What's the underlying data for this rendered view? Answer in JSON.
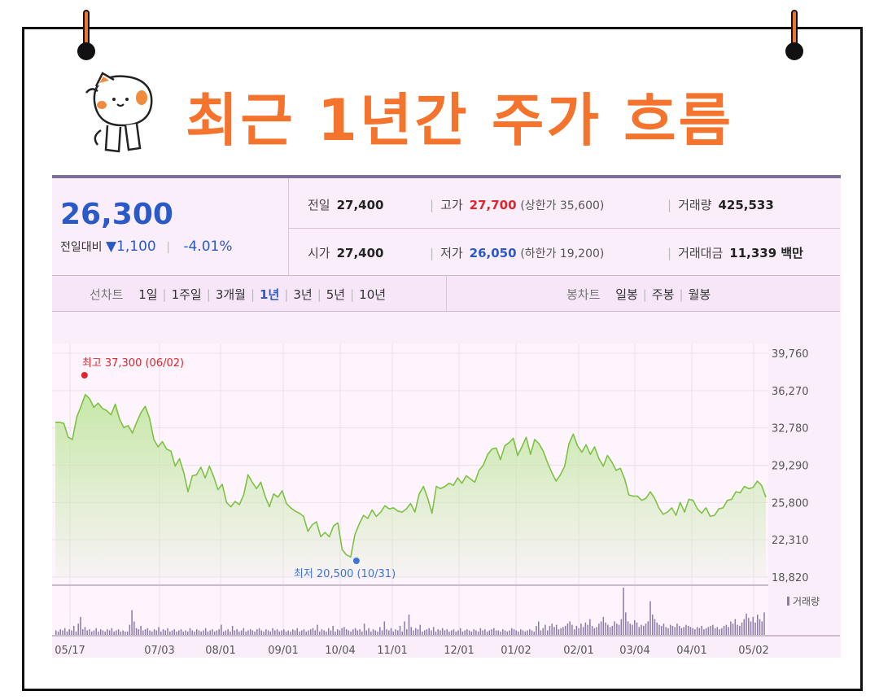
{
  "page": {
    "title": "최근 1년간 주가 흐름"
  },
  "quote": {
    "price": "26,300",
    "change_label": "전일대비",
    "change_value": "▼1,100",
    "change_pct": "-4.01%",
    "prev_close_label": "전일",
    "prev_close": "27,400",
    "open_label": "시가",
    "open": "27,400",
    "high_label": "고가",
    "high": "27,700",
    "upper_limit": "(상한가 35,600)",
    "low_label": "저가",
    "low": "26,050",
    "lower_limit": "(하한가 19,200)",
    "volume_label": "거래량",
    "volume": "425,533",
    "amount_label": "거래대금",
    "amount": "11,339 백만"
  },
  "tabs": {
    "line_label": "선차트",
    "line_tabs": [
      "1일",
      "1주일",
      "3개월",
      "1년",
      "3년",
      "5년",
      "10년"
    ],
    "active": "1년",
    "candle_label": "봉차트",
    "candle_tabs": [
      "일봉",
      "주봉",
      "월봉"
    ]
  },
  "colors": {
    "line": "#7dc243",
    "fill": "#c7e8a8",
    "high_marker": "#e0262b",
    "low_marker": "#3f74d6",
    "title": "#f4732d",
    "price_blue": "#2a59c8"
  },
  "chart_data": {
    "type": "area",
    "x_ticks": [
      "05/17",
      "07/03",
      "08/01",
      "09/01",
      "10/04",
      "11/01",
      "12/01",
      "01/02",
      "02/01",
      "03/04",
      "04/01",
      "05/02"
    ],
    "y_ticks": [
      "39,760",
      "36,270",
      "32,780",
      "29,290",
      "25,800",
      "22,310",
      "18,820"
    ],
    "ylim": [
      18820,
      39760
    ],
    "annotations": {
      "high": "최고 37,300 (06/02)",
      "low": "최저 20,500 (10/31)"
    },
    "volume_legend": "거래량",
    "series": [
      {
        "values": [
          33300,
          33300,
          33200,
          31900,
          31700,
          33800,
          34800,
          35900,
          35500,
          34700,
          35100,
          34600,
          34400,
          34000,
          35000,
          33600,
          32800,
          33000,
          32300,
          33300,
          34200,
          34800,
          33700,
          31700,
          31000,
          31500,
          30800,
          30600,
          29200,
          29900,
          28600,
          26800,
          28300,
          28400,
          29100,
          28100,
          29200,
          28200,
          27000,
          27500,
          25800,
          25400,
          25900,
          25600,
          26500,
          28400,
          27700,
          27100,
          27700,
          26400,
          25400,
          26600,
          26300,
          26900,
          25700,
          25300,
          25000,
          24800,
          24500,
          23100,
          23700,
          24000,
          22600,
          23000,
          22600,
          23600,
          23900,
          21400,
          20900,
          20700,
          22800,
          23800,
          24600,
          24300,
          25100,
          24500,
          24900,
          25500,
          25200,
          25300,
          25000,
          24900,
          25200,
          25700,
          24900,
          26600,
          27300,
          26200,
          24800,
          27300,
          27100,
          27300,
          27600,
          27400,
          28100,
          27600,
          28300,
          28000,
          27700,
          28800,
          29300,
          30300,
          30800,
          30900,
          29800,
          31100,
          31400,
          31800,
          30200,
          31000,
          31900,
          30300,
          31700,
          31300,
          30600,
          29500,
          28600,
          27800,
          28400,
          29200,
          31300,
          32200,
          31100,
          30500,
          31200,
          30300,
          31000,
          29900,
          29200,
          30200,
          29600,
          28800,
          29000,
          28000,
          26500,
          26400,
          26400,
          26000,
          26200,
          26800,
          26200,
          25300,
          24700,
          24900,
          25300,
          24600,
          25800,
          24900,
          26100,
          26000,
          25200,
          24800,
          25300,
          24500,
          24600,
          25200,
          25300,
          26000,
          26100,
          26800,
          26700,
          27300,
          27100,
          27200,
          27800,
          27400,
          26300
        ]
      }
    ],
    "volume": [
      4,
      3,
      5,
      4,
      6,
      3,
      5,
      4,
      8,
      3,
      10,
      16,
      5,
      7,
      4,
      5,
      3,
      4,
      6,
      3,
      5,
      4,
      3,
      5,
      4,
      6,
      3,
      4,
      5,
      3,
      4,
      3,
      3,
      9,
      22,
      12,
      6,
      5,
      8,
      4,
      5,
      6,
      4,
      3,
      5,
      4,
      7,
      3,
      5,
      4,
      6,
      3,
      4,
      5,
      3,
      4,
      5,
      3,
      4,
      3,
      6,
      4,
      3,
      5,
      4,
      3,
      4,
      6,
      3,
      4,
      5,
      3,
      4,
      5,
      9,
      3,
      4,
      5,
      3,
      8,
      4,
      5,
      3,
      4,
      6,
      3,
      4,
      5,
      4,
      3,
      5,
      6,
      4,
      3,
      5,
      4,
      3,
      6,
      4,
      5,
      3,
      4,
      5,
      3,
      4,
      3,
      5,
      4,
      6,
      3,
      4,
      5,
      3,
      4,
      5,
      6,
      4,
      9,
      3,
      5,
      4,
      3,
      6,
      4,
      8,
      3,
      5,
      4,
      6,
      7,
      5,
      4,
      3,
      5,
      6,
      4,
      5,
      3,
      10,
      4,
      6,
      3,
      5,
      4,
      3,
      7,
      4,
      12,
      5,
      4,
      6,
      3,
      5,
      4,
      8,
      3,
      12,
      5,
      18,
      7,
      4,
      6,
      5,
      9,
      3,
      4,
      5,
      6,
      4,
      7,
      3,
      5,
      4,
      6,
      4,
      5,
      3,
      4,
      5,
      3,
      4,
      6,
      3,
      4,
      5,
      4,
      3,
      5,
      4,
      3,
      6,
      4,
      5,
      3,
      4,
      5,
      6,
      4,
      4,
      3,
      5,
      4,
      3,
      4,
      6,
      5,
      4,
      3,
      5,
      4,
      3,
      4,
      5,
      4,
      3,
      8,
      12,
      4,
      6,
      9,
      4,
      8,
      10,
      7,
      9,
      5,
      6,
      7,
      8,
      10,
      12,
      9,
      5,
      8,
      6,
      10,
      7,
      11,
      9,
      14,
      8,
      6,
      7,
      10,
      12,
      16,
      11,
      9,
      7,
      8,
      12,
      10,
      9,
      14,
      42,
      20,
      12,
      10,
      9,
      13,
      11,
      7,
      9,
      8,
      10,
      12,
      30,
      18,
      14,
      11,
      9,
      8,
      10,
      7,
      6,
      9,
      8,
      7,
      10,
      8,
      6,
      7,
      9,
      8,
      7,
      6,
      5,
      7,
      6,
      8,
      5,
      6,
      7,
      8,
      9,
      6,
      7,
      5,
      6,
      8,
      9,
      7,
      12,
      10,
      14,
      9,
      8,
      11,
      14,
      19,
      15,
      12,
      16,
      11,
      18,
      14,
      12,
      20
    ]
  }
}
